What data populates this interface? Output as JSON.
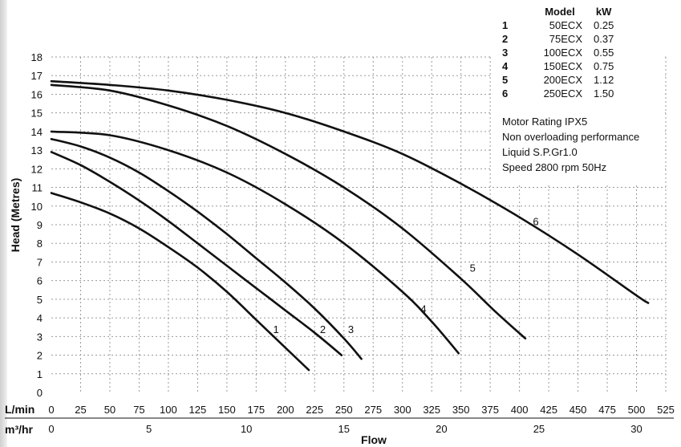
{
  "chart_data": {
    "type": "line",
    "ylabel": "Head (Metres)",
    "xlabel": "Flow",
    "primary_axis": {
      "unit": "L/min",
      "ticks": [
        0,
        25,
        50,
        75,
        100,
        125,
        150,
        175,
        200,
        225,
        250,
        275,
        300,
        325,
        350,
        375,
        400,
        425,
        450,
        475,
        500,
        525
      ],
      "range": [
        0,
        525
      ]
    },
    "secondary_axis": {
      "unit": "m³/hr",
      "ticks": [
        0,
        5,
        10,
        15,
        20,
        25,
        30
      ]
    },
    "y_ticks": [
      0,
      1,
      2,
      3,
      4,
      5,
      6,
      7,
      8,
      9,
      10,
      11,
      12,
      13,
      14,
      15,
      16,
      17,
      18
    ],
    "ylim": [
      0,
      18
    ],
    "grid": true,
    "series": [
      {
        "name": "1",
        "x": [
          0,
          25,
          50,
          75,
          100,
          125,
          150,
          175,
          200,
          220
        ],
        "y": [
          10.7,
          10.2,
          9.6,
          8.8,
          7.8,
          6.7,
          5.4,
          3.9,
          2.4,
          1.2
        ],
        "label_at": [
          192,
          3.4
        ]
      },
      {
        "name": "2",
        "x": [
          0,
          25,
          50,
          75,
          100,
          125,
          150,
          175,
          200,
          225,
          248
        ],
        "y": [
          12.9,
          12.2,
          11.3,
          10.3,
          9.2,
          8.0,
          6.8,
          5.6,
          4.4,
          3.2,
          2.0
        ],
        "label_at": [
          232,
          3.4
        ]
      },
      {
        "name": "3",
        "x": [
          0,
          25,
          50,
          75,
          100,
          125,
          150,
          175,
          200,
          225,
          250,
          265
        ],
        "y": [
          13.6,
          13.2,
          12.6,
          11.8,
          10.8,
          9.7,
          8.5,
          7.2,
          5.9,
          4.5,
          2.9,
          1.8
        ],
        "label_at": [
          256,
          3.4
        ]
      },
      {
        "name": "4",
        "x": [
          0,
          50,
          100,
          150,
          200,
          250,
          300,
          325,
          348
        ],
        "y": [
          14.0,
          13.8,
          13.0,
          11.8,
          10.1,
          8.0,
          5.4,
          3.8,
          2.1
        ],
        "label_at": [
          318,
          4.5
        ]
      },
      {
        "name": "5",
        "x": [
          0,
          50,
          100,
          150,
          200,
          250,
          300,
          350,
          380,
          405
        ],
        "y": [
          16.5,
          16.2,
          15.4,
          14.3,
          12.8,
          11.0,
          8.8,
          6.1,
          4.3,
          2.9
        ],
        "label_at": [
          360,
          6.7
        ]
      },
      {
        "name": "6",
        "x": [
          0,
          50,
          100,
          150,
          200,
          250,
          300,
          350,
          400,
          450,
          500,
          510
        ],
        "y": [
          16.7,
          16.5,
          16.2,
          15.7,
          15.0,
          14.0,
          12.8,
          11.2,
          9.4,
          7.4,
          5.2,
          4.8
        ],
        "label_at": [
          414,
          9.2
        ]
      }
    ]
  },
  "legend_table": {
    "headers": {
      "index": "",
      "model": "Model",
      "kw": "kW"
    },
    "rows": [
      {
        "index": "1",
        "model": "50ECX",
        "kw": "0.25"
      },
      {
        "index": "2",
        "model": "75ECX",
        "kw": "0.37"
      },
      {
        "index": "3",
        "model": "100ECX",
        "kw": "0.55"
      },
      {
        "index": "4",
        "model": "150ECX",
        "kw": "0.75"
      },
      {
        "index": "5",
        "model": "200ECX",
        "kw": "1.12"
      },
      {
        "index": "6",
        "model": "250ECX",
        "kw": "1.50"
      }
    ]
  },
  "notes": [
    "Motor Rating IPX5",
    "Non  overloading performance",
    "Liquid S.P.Gr1.0",
    "Speed 2800 rpm 50Hz"
  ],
  "colors": {
    "curve": "#111111",
    "grid": "#9a9a9a",
    "background": "#ffffff"
  }
}
